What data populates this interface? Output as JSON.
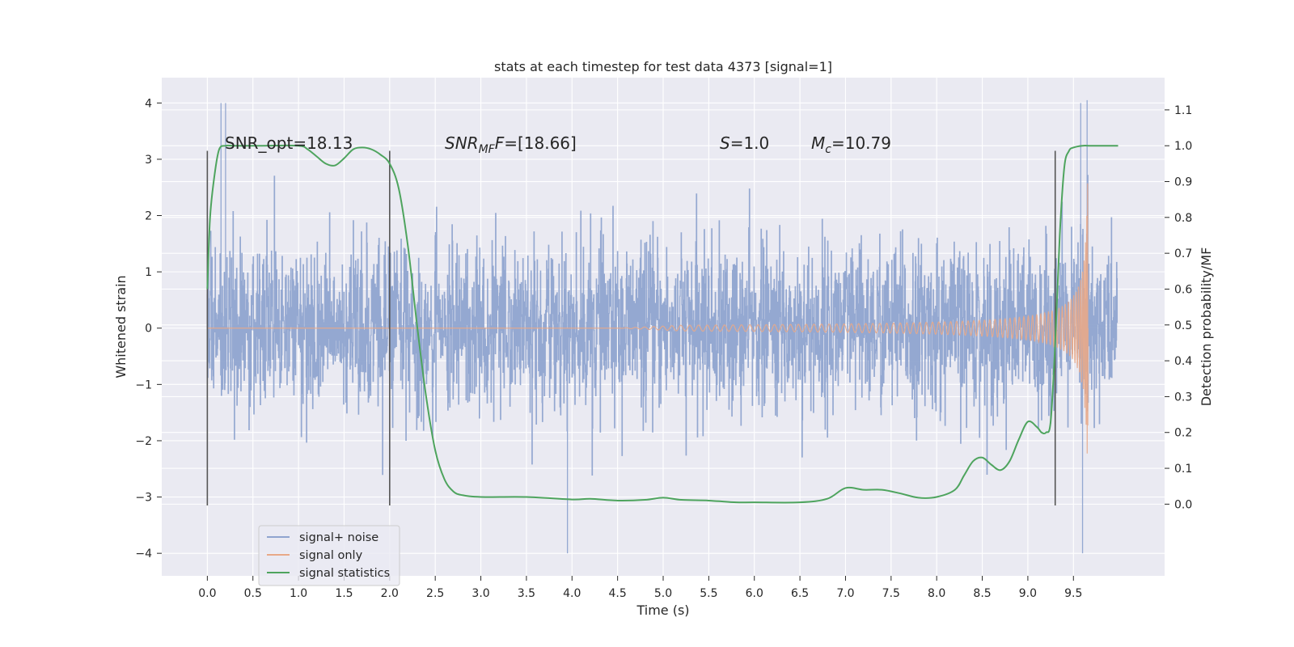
{
  "chart_data": {
    "type": "line",
    "title": "stats at each timestep for test data 4373 [signal=1]",
    "xlabel": "Time (s)",
    "ylabel_left": "Whitened strain",
    "ylabel_right": "Detection probability/MF",
    "xlim": [
      -0.5,
      10.5
    ],
    "ylim_left": [
      -4.4,
      4.45
    ],
    "ylim_right": [
      -0.2,
      1.19
    ],
    "x_ticks": [
      "0.0",
      "0.5",
      "1.0",
      "1.5",
      "2.0",
      "2.5",
      "3.0",
      "3.5",
      "4.0",
      "4.5",
      "5.0",
      "5.5",
      "6.0",
      "6.5",
      "7.0",
      "7.5",
      "8.0",
      "8.5",
      "9.0",
      "9.5"
    ],
    "y_ticks_left": [
      "4",
      "3",
      "2",
      "1",
      "0",
      "−1",
      "−2",
      "−3",
      "−4"
    ],
    "y_ticks_right": [
      "1.1",
      "1.0",
      "0.9",
      "0.8",
      "0.7",
      "0.6",
      "0.5",
      "0.4",
      "0.3",
      "0.2",
      "0.1",
      "0.0"
    ],
    "grid": true,
    "annotations": {
      "snr_opt": "SNR_opt=18.13",
      "snr_mf_main": "SNR",
      "snr_mf_sub": "MF",
      "snr_mf_val": "=[18.66]",
      "s_main": "S",
      "s_val": "=1.0",
      "mc_main": "M",
      "mc_sub": "c",
      "mc_val": "=10.79"
    },
    "legend_position": "lower-left",
    "series": [
      {
        "name": "signal+ noise",
        "color": "#8fa4cf",
        "description_axis": "left",
        "x_range": [
          0.0,
          9.98
        ],
        "noise_rms": 0.75,
        "peaks": [
          [
            0.15,
            4.0
          ],
          [
            0.2,
            4.0
          ],
          [
            9.58,
            4.0
          ],
          [
            9.65,
            4.05
          ],
          [
            9.6,
            -4.0
          ],
          [
            3.95,
            -4.0
          ]
        ]
      },
      {
        "name": "signal only",
        "color": "#e8a888",
        "description_axis": "left",
        "x_range": [
          0.0,
          9.66
        ],
        "chirp_merger_time": 9.66,
        "peak_amplitude": 2.85
      },
      {
        "name": "signal statistics",
        "color": "#4ea45e",
        "description_axis": "right",
        "x": [
          0.0,
          0.03,
          0.08,
          0.13,
          0.2,
          0.3,
          0.6,
          1.0,
          1.1,
          1.2,
          1.3,
          1.4,
          1.5,
          1.6,
          1.7,
          1.8,
          1.9,
          2.0,
          2.1,
          2.2,
          2.3,
          2.4,
          2.5,
          2.6,
          2.7,
          2.8,
          3.0,
          3.5,
          4.0,
          4.2,
          4.5,
          4.8,
          5.0,
          5.2,
          5.5,
          5.8,
          6.0,
          6.5,
          6.8,
          7.0,
          7.2,
          7.4,
          7.6,
          7.8,
          8.0,
          8.2,
          8.3,
          8.4,
          8.5,
          8.6,
          8.7,
          8.8,
          8.9,
          9.0,
          9.1,
          9.15,
          9.2,
          9.25,
          9.3,
          9.35,
          9.4,
          9.45,
          9.5,
          9.6,
          9.7,
          9.99
        ],
        "y": [
          0.6,
          0.8,
          0.92,
          0.99,
          1.0,
          1.0,
          1.0,
          1.0,
          0.99,
          0.97,
          0.95,
          0.945,
          0.965,
          0.99,
          0.995,
          0.99,
          0.975,
          0.95,
          0.88,
          0.72,
          0.5,
          0.3,
          0.15,
          0.07,
          0.035,
          0.025,
          0.02,
          0.02,
          0.013,
          0.015,
          0.01,
          0.012,
          0.018,
          0.012,
          0.01,
          0.005,
          0.005,
          0.005,
          0.015,
          0.045,
          0.04,
          0.04,
          0.03,
          0.018,
          0.02,
          0.04,
          0.08,
          0.12,
          0.13,
          0.11,
          0.095,
          0.12,
          0.18,
          0.23,
          0.215,
          0.2,
          0.2,
          0.23,
          0.45,
          0.75,
          0.94,
          0.985,
          0.995,
          1.0,
          1.0,
          1.0
        ]
      }
    ],
    "vertical_markers": [
      {
        "x": 0.0,
        "y_from": -3.15,
        "y_to": 3.15
      },
      {
        "x": 2.0,
        "y_from": -3.15,
        "y_to": 3.15
      },
      {
        "x": 9.3,
        "y_from": -3.15,
        "y_to": 3.15
      }
    ],
    "colors": {
      "plot_background": "#eaeaf2",
      "grid": "#ffffff",
      "marker_line": "#555555",
      "text": "#262626"
    }
  }
}
